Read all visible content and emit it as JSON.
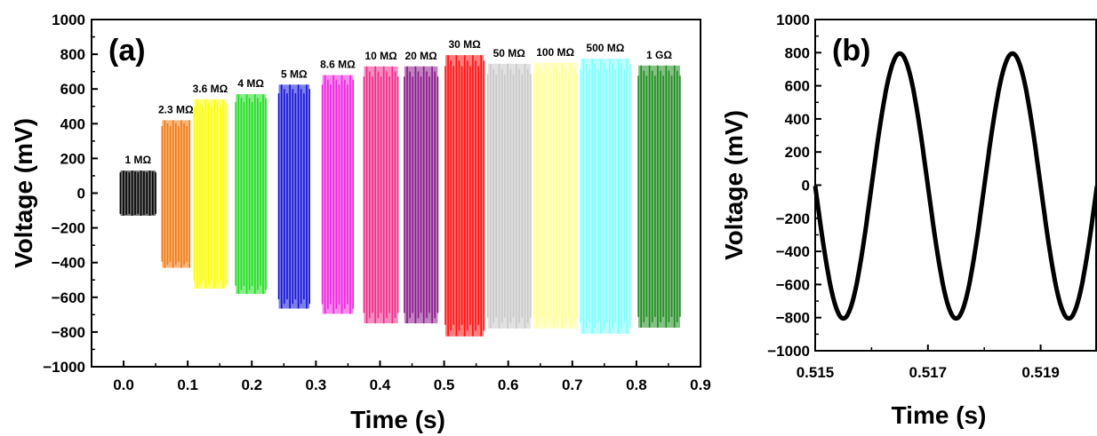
{
  "chart_data": [
    {
      "panel": "(a)",
      "type": "bar",
      "xlabel": "Time (s)",
      "ylabel": "Voltage (mV)",
      "xlim": [
        -0.05,
        0.9
      ],
      "ylim": [
        -1000,
        1000
      ],
      "xticks": [
        "0.0",
        "0.1",
        "0.2",
        "0.3",
        "0.4",
        "0.5",
        "0.6",
        "0.7",
        "0.8",
        "0.9"
      ],
      "yticks": [
        "1000",
        "800",
        "600",
        "400",
        "200",
        "0",
        "−200",
        "−400",
        "−600",
        "−800",
        "−1000"
      ],
      "bursts": [
        {
          "label": "1 MΩ",
          "x_start": -0.005,
          "x_end": 0.05,
          "vmax": 130,
          "vmin": -130,
          "color": "#000000"
        },
        {
          "label": "2.3 MΩ",
          "x_start": 0.06,
          "x_end": 0.103,
          "vmax": 420,
          "vmin": -430,
          "color": "#f07a12"
        },
        {
          "label": "3.6 MΩ",
          "x_start": 0.11,
          "x_end": 0.16,
          "vmax": 540,
          "vmin": -550,
          "color": "#ffff00"
        },
        {
          "label": "4 MΩ",
          "x_start": 0.175,
          "x_end": 0.222,
          "vmax": 570,
          "vmin": -580,
          "color": "#22dd22"
        },
        {
          "label": "5 MΩ",
          "x_start": 0.242,
          "x_end": 0.29,
          "vmax": 625,
          "vmin": -665,
          "color": "#1515d8"
        },
        {
          "label": "8.6 MΩ",
          "x_start": 0.31,
          "x_end": 0.358,
          "vmax": 680,
          "vmin": -695,
          "color": "#f025e0"
        },
        {
          "label": "10 MΩ",
          "x_start": 0.375,
          "x_end": 0.428,
          "vmax": 730,
          "vmin": -750,
          "color": "#ef2c8a"
        },
        {
          "label": "20 MΩ",
          "x_start": 0.438,
          "x_end": 0.49,
          "vmax": 730,
          "vmin": -750,
          "color": "#8a1a8a"
        },
        {
          "label": "30 MΩ",
          "x_start": 0.502,
          "x_end": 0.562,
          "vmax": 795,
          "vmin": -825,
          "color": "#ff1010"
        },
        {
          "label": "50 MΩ",
          "x_start": 0.568,
          "x_end": 0.635,
          "vmax": 745,
          "vmin": -780,
          "color": "#c8c8c8"
        },
        {
          "label": "100 MΩ",
          "x_start": 0.64,
          "x_end": 0.707,
          "vmax": 750,
          "vmin": -780,
          "color": "#ffff99"
        },
        {
          "label": "500 MΩ",
          "x_start": 0.713,
          "x_end": 0.79,
          "vmax": 775,
          "vmin": -810,
          "color": "#7fffff"
        },
        {
          "label": "1 GΩ",
          "x_start": 0.803,
          "x_end": 0.868,
          "vmax": 735,
          "vmin": -775,
          "color": "#1f8c1f"
        }
      ]
    },
    {
      "panel": "(b)",
      "type": "line",
      "xlabel": "Time (s)",
      "ylabel": "Voltage (mV)",
      "xlim": [
        0.515,
        0.52
      ],
      "ylim": [
        -1000,
        1000
      ],
      "xticks": [
        "0.515",
        "0.517",
        "0.519"
      ],
      "yticks": [
        "1000",
        "800",
        "600",
        "400",
        "200",
        "0",
        "−200",
        "−400",
        "−600",
        "−800",
        "−1000"
      ],
      "series": [
        {
          "frequency_hz": 500,
          "amplitude": 800,
          "offset": -5,
          "zero_crossing_down": 0.515,
          "color": "#000000"
        }
      ]
    }
  ]
}
